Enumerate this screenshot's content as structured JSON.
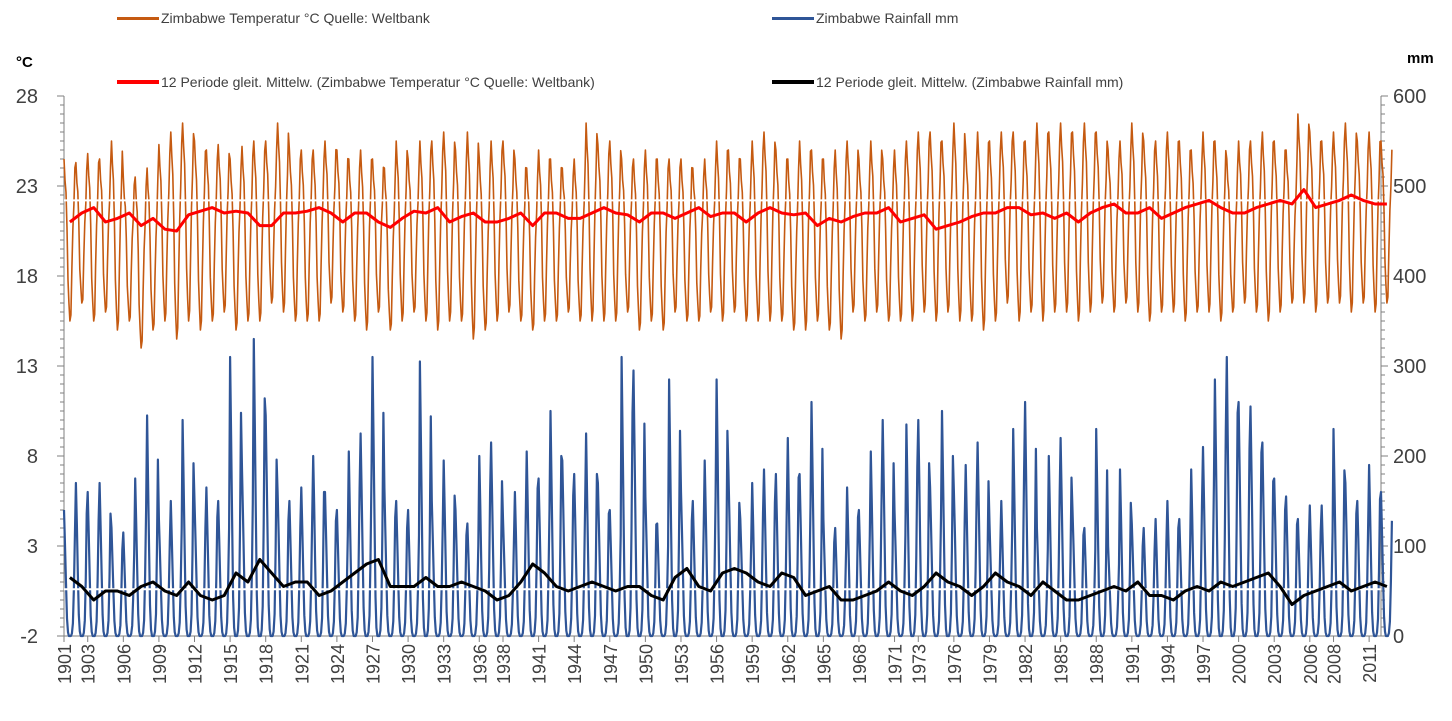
{
  "chart_data": {
    "type": "line",
    "title": "",
    "x_range": [
      1901,
      2012
    ],
    "x_tick_labels": [
      "1901",
      "1903",
      "1906",
      "1909",
      "1912",
      "1915",
      "1918",
      "1921",
      "1924",
      "1927",
      "1930",
      "1933",
      "1936",
      "1938",
      "1941",
      "1944",
      "1947",
      "1950",
      "1953",
      "1956",
      "1959",
      "1962",
      "1965",
      "1968",
      "1971",
      "1973",
      "1976",
      "1979",
      "1982",
      "1985",
      "1988",
      "1991",
      "1994",
      "1997",
      "2000",
      "2003",
      "2006",
      "2008",
      "2011"
    ],
    "left_axis": {
      "unit_label": "°C",
      "ylim": [
        -2,
        28
      ],
      "tick_labels": [
        "28",
        "23",
        "18",
        "13",
        "8",
        "3",
        "-2"
      ]
    },
    "right_axis": {
      "unit_label": "mm",
      "ylim": [
        0,
        600
      ],
      "tick_labels": [
        "600",
        "500",
        "400",
        "300",
        "200",
        "100",
        "0"
      ]
    },
    "legend": [
      {
        "label": "Zimbabwe Temperatur °C  Quelle: Weltbank",
        "color": "#C55A11"
      },
      {
        "label": "Zimbabwe Rainfall mm",
        "color": "#2F5597"
      },
      {
        "label": "12 Periode gleit. Mittelw. (Zimbabwe Temperatur °C  Quelle: Weltbank)",
        "color": "#FF0000"
      },
      {
        "label": "12 Periode gleit. Mittelw. (Zimbabwe Rainfall mm)",
        "color": "#000000"
      }
    ],
    "series": [
      {
        "name": "Zimbabwe Temperatur °C  Quelle: Weltbank",
        "axis": "left",
        "color": "#C55A11",
        "description_of_cycle": "monthly values oscillating yearly",
        "summer_peaks": [
          24.5,
          24.3,
          24.8,
          24.5,
          25.5,
          23.5,
          23.5,
          24.0,
          25.3,
          26.0,
          26.5,
          25.5,
          25.0,
          25.3,
          24.5,
          25.2,
          25.5,
          25.5,
          26.5,
          25.0,
          25.0,
          25.0,
          25.5,
          25.0,
          24.5,
          25.0,
          24.5,
          24.0,
          25.5,
          24.5,
          25.5,
          25.5,
          26.0,
          25.0,
          26.0,
          24.5,
          25.5,
          25.5,
          24.5,
          24.0,
          25.0,
          24.5,
          24.0,
          24.5,
          26.5,
          25.3,
          25.5,
          24.5,
          24.5,
          25.0,
          24.5,
          24.5,
          24.5,
          24.0,
          24.5,
          25.5,
          25.0,
          24.5,
          25.5,
          26.0,
          25.0,
          24.5,
          25.5,
          25.0,
          24.5,
          25.0,
          25.5,
          24.5,
          25.5,
          24.5,
          25.0,
          25.5,
          26.0,
          26.0,
          25.5,
          26.5,
          25.0,
          26.0,
          25.5,
          26.0,
          26.0,
          25.5,
          26.5,
          26.0,
          26.5,
          26.0,
          26.5,
          26.0,
          25.0,
          25.5,
          26.5,
          25.5,
          25.5,
          26.0,
          25.5,
          25.0,
          26.0,
          25.5,
          24.5,
          25.5,
          25.5,
          26.0,
          25.5,
          25.0,
          27.0,
          26.0,
          25.5,
          26.0,
          26.5,
          25.5,
          26.0,
          25.5
        ],
        "winter_troughs": [
          15.5,
          16.5,
          15.5,
          16.0,
          15.0,
          15.5,
          14.0,
          15.0,
          15.5,
          14.5,
          15.5,
          15.0,
          15.5,
          16.0,
          15.0,
          15.5,
          15.5,
          16.5,
          16.0,
          15.5,
          15.5,
          15.5,
          16.5,
          16.0,
          15.5,
          15.0,
          16.0,
          15.0,
          15.5,
          16.0,
          15.5,
          15.0,
          15.5,
          15.5,
          14.5,
          15.0,
          15.5,
          16.0,
          15.5,
          15.0,
          15.5,
          15.5,
          16.0,
          15.5,
          15.5,
          15.5,
          15.5,
          16.0,
          15.0,
          15.5,
          15.0,
          16.0,
          15.5,
          15.5,
          16.0,
          15.5,
          16.0,
          15.5,
          15.5,
          15.5,
          15.5,
          15.0,
          15.0,
          15.5,
          15.0,
          14.5,
          16.0,
          15.5,
          16.0,
          15.5,
          15.5,
          15.5,
          16.0,
          15.5,
          16.0,
          15.5,
          15.5,
          15.0,
          15.5,
          16.5,
          15.5,
          16.0,
          15.5,
          16.0,
          16.0,
          15.5,
          16.0,
          16.5,
          16.0,
          16.5,
          16.0,
          15.5,
          16.0,
          16.0,
          15.5,
          16.0,
          16.0,
          15.5,
          16.0,
          16.5,
          16.0,
          15.5,
          16.0,
          16.5,
          16.5,
          16.0,
          16.5,
          16.5,
          16.0,
          16.5,
          16.0,
          16.5
        ]
      },
      {
        "name": "Zimbabwe Rainfall mm",
        "axis": "right",
        "color": "#2F5597",
        "description_of_cycle": "monthly values, wet-season peaks and near-zero dry season",
        "annual_peaks": [
          140,
          170,
          160,
          170,
          120,
          115,
          175,
          245,
          130,
          150,
          240,
          150,
          165,
          150,
          310,
          185,
          330,
          245,
          160,
          150,
          165,
          200,
          160,
          140,
          205,
          225,
          310,
          165,
          150,
          140,
          305,
          150,
          195,
          140,
          125,
          200,
          215,
          130,
          160,
          205,
          175,
          250,
          195,
          180,
          225,
          170,
          140,
          310,
          295,
          155,
          125,
          285,
          160,
          150,
          195,
          285,
          185,
          130,
          170,
          185,
          180,
          220,
          180,
          260,
          130,
          120,
          165,
          140,
          205,
          240,
          140,
          235,
          240,
          165,
          250,
          160,
          190,
          215,
          125,
          150,
          230,
          260,
          120,
          200,
          220,
          140,
          120,
          230,
          100,
          185,
          125,
          120,
          130,
          150,
          130,
          185,
          210,
          285,
          310,
          260,
          255,
          215,
          175,
          155,
          130,
          145,
          145,
          230,
          170,
          150,
          190,
          160
        ]
      },
      {
        "name": "12 Periode gleit. Mittelw. (Zimbabwe Temperatur °C  Quelle: Weltbank)",
        "axis": "left",
        "color": "#FF0000",
        "annual_values": [
          21.0,
          21.5,
          21.8,
          21.0,
          21.2,
          21.5,
          20.8,
          21.2,
          20.6,
          20.5,
          21.4,
          21.6,
          21.8,
          21.5,
          21.6,
          21.5,
          20.8,
          20.8,
          21.5,
          21.5,
          21.6,
          21.8,
          21.5,
          21.0,
          21.5,
          21.5,
          21.0,
          20.7,
          21.2,
          21.6,
          21.5,
          21.8,
          21.0,
          21.3,
          21.5,
          21.0,
          21.0,
          21.2,
          21.5,
          20.8,
          21.5,
          21.5,
          21.2,
          21.2,
          21.5,
          21.8,
          21.5,
          21.4,
          21.0,
          21.5,
          21.5,
          21.2,
          21.5,
          21.8,
          21.3,
          21.5,
          21.5,
          21.0,
          21.5,
          21.8,
          21.5,
          21.4,
          21.5,
          20.8,
          21.2,
          21.0,
          21.3,
          21.5,
          21.5,
          21.8,
          21.0,
          21.2,
          21.4,
          20.6,
          20.8,
          21.0,
          21.3,
          21.5,
          21.5,
          21.8,
          21.8,
          21.4,
          21.5,
          21.2,
          21.5,
          21.0,
          21.5,
          21.8,
          22.0,
          21.5,
          21.5,
          21.8,
          21.2,
          21.5,
          21.8,
          22.0,
          22.2,
          21.8,
          21.5,
          21.5,
          21.8,
          22.0,
          22.2,
          22.0,
          22.8,
          21.8,
          22.0,
          22.2,
          22.5,
          22.2,
          22.0,
          22.0
        ]
      },
      {
        "name": "12 Periode gleit. Mittelw. (Zimbabwe Rainfall mm)",
        "axis": "right",
        "color": "#000000",
        "annual_values": [
          65,
          55,
          40,
          50,
          50,
          45,
          55,
          60,
          50,
          45,
          60,
          45,
          40,
          45,
          70,
          60,
          85,
          70,
          55,
          60,
          60,
          45,
          50,
          60,
          70,
          80,
          85,
          55,
          55,
          55,
          65,
          55,
          55,
          60,
          55,
          50,
          40,
          45,
          60,
          80,
          70,
          55,
          50,
          55,
          60,
          55,
          50,
          55,
          55,
          45,
          40,
          65,
          75,
          55,
          50,
          70,
          75,
          70,
          60,
          55,
          70,
          65,
          45,
          50,
          55,
          40,
          40,
          45,
          50,
          60,
          50,
          45,
          55,
          70,
          60,
          55,
          45,
          55,
          70,
          60,
          55,
          45,
          60,
          50,
          40,
          40,
          45,
          50,
          55,
          50,
          60,
          45,
          45,
          40,
          50,
          55,
          50,
          60,
          55,
          60,
          65,
          70,
          55,
          35,
          45,
          50,
          55,
          60,
          50,
          55,
          60,
          55
        ]
      }
    ],
    "reference_lines": [
      {
        "axis": "left",
        "value": 22.2,
        "color": "#FFFFFF"
      },
      {
        "axis": "right",
        "value": 52,
        "color": "#FFFFFF"
      }
    ]
  }
}
